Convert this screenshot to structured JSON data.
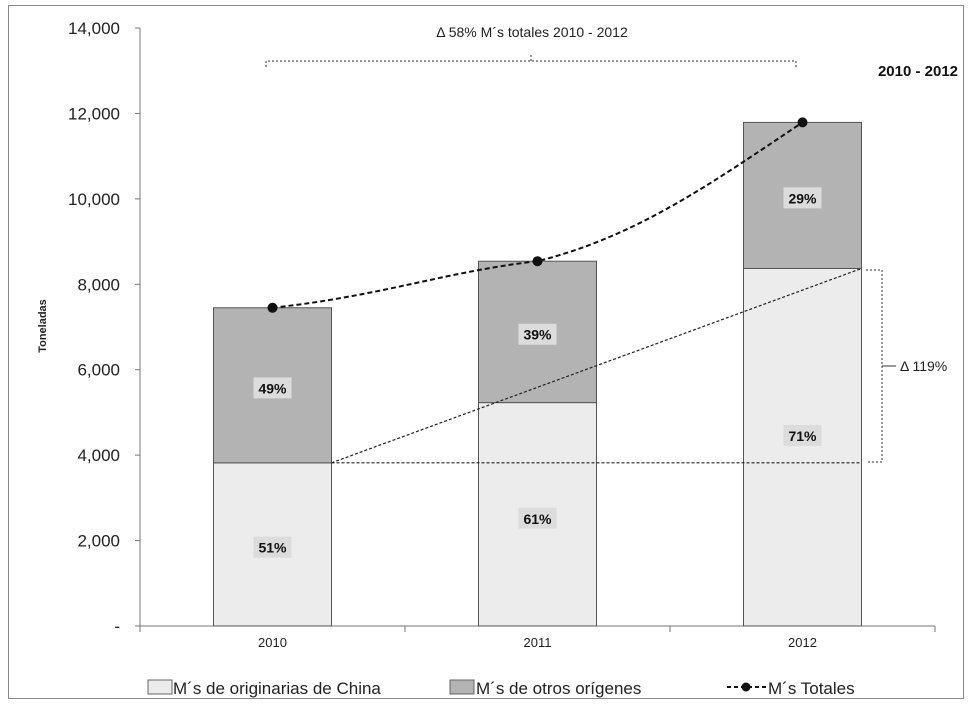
{
  "chart_data": {
    "type": "bar",
    "stacked": true,
    "categories": [
      "2010",
      "2011",
      "2012"
    ],
    "ylabel": "Toneladas",
    "ylim": [
      0,
      14000
    ],
    "yticks": [
      "-",
      "2,000",
      "4,000",
      "6,000",
      "8,000",
      "10,000",
      "12,000",
      "14,000"
    ],
    "grid": false,
    "legend_position": "bottom",
    "series": [
      {
        "name": "M´s de originarias de China",
        "kind": "bar",
        "values": [
          3820,
          5230,
          8370
        ],
        "labels": [
          "51%",
          "61%",
          "71%"
        ],
        "color": "#ececec"
      },
      {
        "name": "M´s de otros orígenes",
        "kind": "bar",
        "values": [
          3630,
          3310,
          3420
        ],
        "labels": [
          "49%",
          "39%",
          "29%"
        ],
        "color": "#b3b3b3"
      },
      {
        "name": "M´s Totales",
        "kind": "line",
        "style": "dashed",
        "values": [
          7450,
          8540,
          11790
        ],
        "color": "#111111"
      }
    ],
    "annotations": {
      "period": "2010 - 2012",
      "total_change": "Δ 58% M´s totales 2010 - 2012",
      "china_change": "Δ 119%"
    }
  }
}
